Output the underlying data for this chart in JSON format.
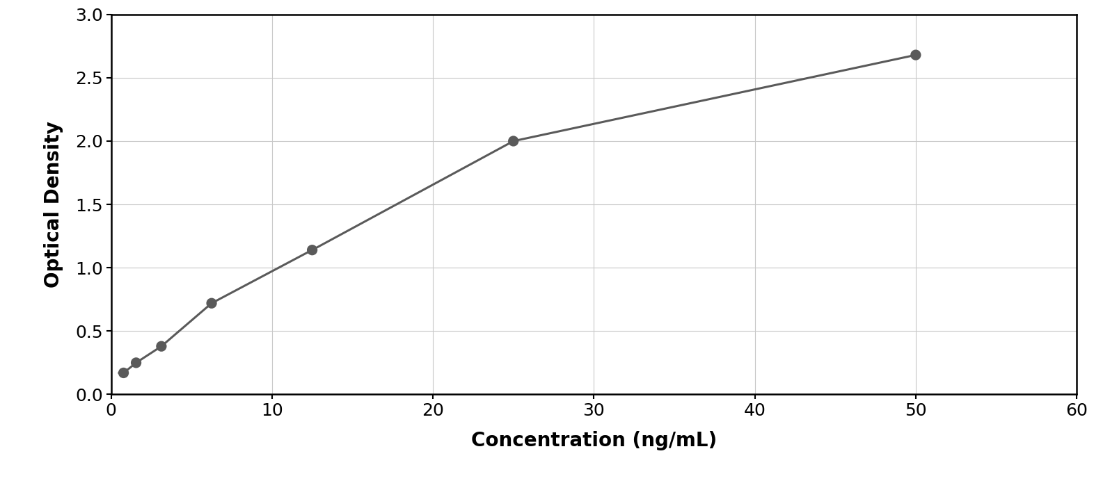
{
  "x_data": [
    0.78,
    1.56,
    3.13,
    6.25,
    12.5,
    25.0,
    50.0
  ],
  "y_data": [
    0.17,
    0.25,
    0.38,
    0.72,
    1.14,
    2.0,
    2.68
  ],
  "point_color": "#5a5a5a",
  "line_color": "#5a5a5a",
  "background_color": "#ffffff",
  "outer_background": "#ffffff",
  "xlabel": "Concentration (ng/mL)",
  "ylabel": "Optical Density",
  "xlim": [
    0,
    60
  ],
  "ylim": [
    0,
    3
  ],
  "xticks": [
    0,
    10,
    20,
    30,
    40,
    50,
    60
  ],
  "yticks": [
    0,
    0.5,
    1.0,
    1.5,
    2.0,
    2.5,
    3.0
  ],
  "grid_color": "#c8c8c8",
  "xlabel_fontsize": 20,
  "ylabel_fontsize": 20,
  "tick_fontsize": 18,
  "marker_size": 11,
  "line_width": 2.2,
  "curve_x_end": 50.0
}
